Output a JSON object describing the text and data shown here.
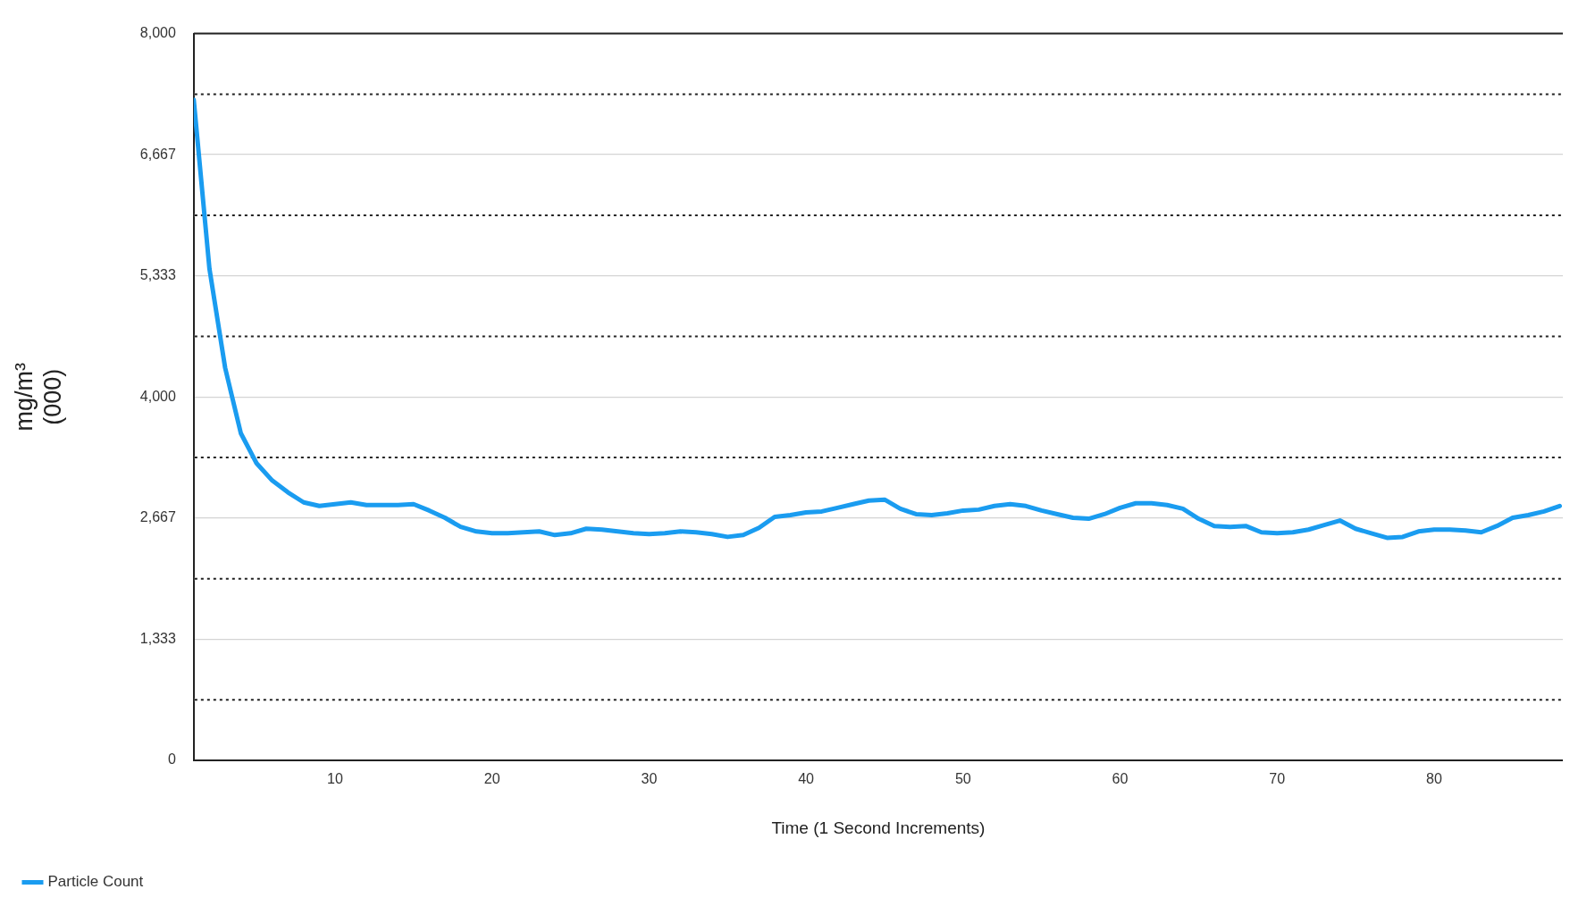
{
  "chart_data": {
    "type": "line",
    "xlabel": "Time (1 Second Increments)",
    "ylabel": "mg/m³ (000)",
    "x": [
      1,
      2,
      3,
      4,
      5,
      6,
      7,
      8,
      9,
      10,
      11,
      12,
      13,
      14,
      15,
      16,
      17,
      18,
      19,
      20,
      21,
      22,
      23,
      24,
      25,
      26,
      27,
      28,
      29,
      30,
      31,
      32,
      33,
      34,
      35,
      36,
      37,
      38,
      39,
      40,
      41,
      42,
      43,
      44,
      45,
      46,
      47,
      48,
      49,
      50,
      51,
      52,
      53,
      54,
      55,
      56,
      57,
      58,
      59,
      60,
      61,
      62,
      63,
      64,
      65,
      66,
      67,
      68,
      69,
      70,
      71,
      72,
      73,
      74,
      75,
      76,
      77,
      78,
      79,
      80,
      81,
      82,
      83,
      84,
      85,
      86,
      87,
      88
    ],
    "series": [
      {
        "name": "Particle Count",
        "color": "#1a9cf0",
        "values": [
          7270,
          5410,
          4320,
          3600,
          3270,
          3080,
          2950,
          2840,
          2800,
          2820,
          2840,
          2810,
          2810,
          2810,
          2820,
          2750,
          2670,
          2570,
          2520,
          2500,
          2500,
          2510,
          2520,
          2480,
          2500,
          2550,
          2540,
          2520,
          2500,
          2490,
          2500,
          2520,
          2510,
          2490,
          2460,
          2480,
          2560,
          2680,
          2700,
          2730,
          2740,
          2780,
          2820,
          2860,
          2870,
          2770,
          2710,
          2700,
          2720,
          2750,
          2760,
          2800,
          2820,
          2800,
          2750,
          2710,
          2670,
          2660,
          2710,
          2780,
          2830,
          2830,
          2810,
          2770,
          2660,
          2580,
          2570,
          2580,
          2510,
          2500,
          2510,
          2540,
          2590,
          2640,
          2550,
          2500,
          2450,
          2460,
          2520,
          2540,
          2540,
          2530,
          2510,
          2580,
          2670,
          2700,
          2740,
          2800
        ]
      }
    ],
    "xlim": [
      1,
      88.2
    ],
    "xticks": [
      10,
      20,
      30,
      40,
      50,
      60,
      70,
      80
    ],
    "ylim": [
      0,
      8000
    ],
    "yticks": [
      0,
      {
        "value": 667,
        "label": null
      },
      {
        "value": 1333,
        "label": "1,333"
      },
      {
        "value": 2000,
        "label": null
      },
      {
        "value": 2667,
        "label": "2,667"
      },
      {
        "value": 3333,
        "label": null
      },
      {
        "value": 4000,
        "label": "4,000"
      },
      {
        "value": 4667,
        "label": null
      },
      {
        "value": 5333,
        "label": "5,333"
      },
      {
        "value": 6000,
        "label": null
      },
      {
        "value": 6667,
        "label": "6,667"
      },
      {
        "value": 7333,
        "label": null
      },
      {
        "value": 8000,
        "label": "8,000"
      }
    ],
    "grid": "y",
    "legend": "bottom left"
  }
}
